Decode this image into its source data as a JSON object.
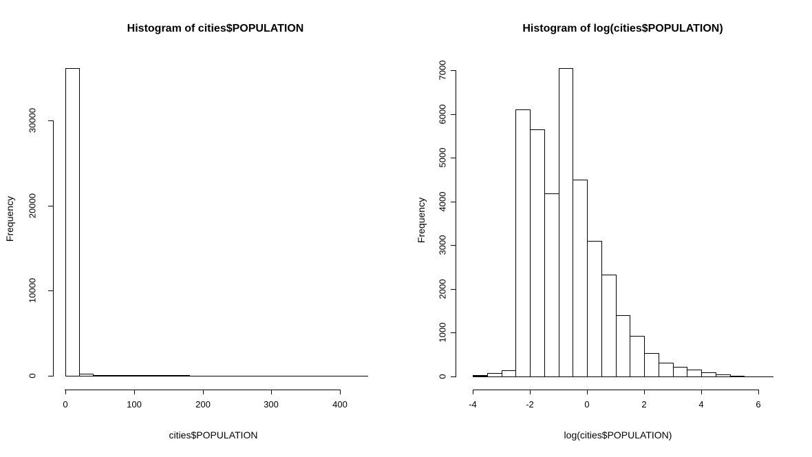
{
  "figure": {
    "background": "#ffffff",
    "foreground": "#000000"
  },
  "chart_data": [
    {
      "type": "bar",
      "subtype": "histogram",
      "title": "Histogram of cities$POPULATION",
      "xlabel": "cities$POPULATION",
      "ylabel": "Frequency",
      "bar_fill": "#ffffff",
      "bar_stroke": "#000000",
      "grid": false,
      "legend": false,
      "bin_start": 0,
      "bin_width": 20,
      "counts": [
        36150,
        240,
        120,
        80,
        60,
        50,
        45,
        42,
        41,
        20,
        15,
        12,
        10,
        8,
        7,
        6,
        5,
        4,
        3,
        3,
        2,
        2
      ],
      "xlim": [
        0,
        440
      ],
      "ylim": [
        0,
        36150
      ],
      "x_ticks": {
        "values": [
          0,
          100,
          200,
          300,
          400
        ],
        "labels": [
          "0",
          "100",
          "200",
          "300",
          "400"
        ]
      },
      "y_ticks": {
        "values": [
          0,
          10000,
          20000,
          30000
        ],
        "labels": [
          "0",
          "10000",
          "20000",
          "30000"
        ]
      }
    },
    {
      "type": "bar",
      "subtype": "histogram",
      "title": "Histogram of log(cities$POPULATION)",
      "xlabel": "log(cities$POPULATION)",
      "ylabel": "Frequency",
      "bar_fill": "#ffffff",
      "bar_stroke": "#000000",
      "grid": false,
      "legend": false,
      "bin_start": -4,
      "bin_width": 0.5,
      "counts": [
        25,
        80,
        135,
        6100,
        5650,
        4190,
        7050,
        4500,
        3100,
        2330,
        1400,
        930,
        540,
        310,
        220,
        150,
        90,
        40,
        15,
        3,
        1
      ],
      "xlim": [
        -4,
        6.5
      ],
      "ylim": [
        0,
        7050
      ],
      "x_ticks": {
        "values": [
          -4,
          -2,
          0,
          2,
          4,
          6
        ],
        "labels": [
          "-4",
          "-2",
          "0",
          "2",
          "4",
          "6"
        ]
      },
      "y_ticks": {
        "values": [
          0,
          1000,
          2000,
          3000,
          4000,
          5000,
          6000,
          7000
        ],
        "labels": [
          "0",
          "1000",
          "2000",
          "3000",
          "4000",
          "5000",
          "6000",
          "7000"
        ]
      }
    }
  ]
}
